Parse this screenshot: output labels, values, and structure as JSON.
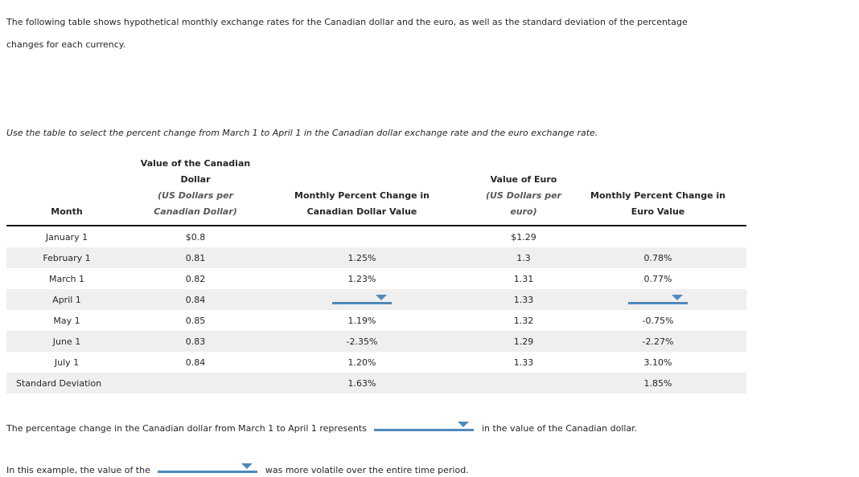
{
  "intro": "The following table shows hypothetical monthly exchange rates for the Canadian dollar and the euro, as well as the standard deviation of the percentage changes for each currency.",
  "instruction": "Use the table to select the percent change from March 1 to April 1 in the Canadian dollar exchange rate and the euro exchange rate.",
  "table": {
    "headers": {
      "month": "Month",
      "cad_value_title": "Value of the Canadian Dollar",
      "cad_value_sub": "(US Dollars per Canadian Dollar)",
      "cad_change": "Monthly Percent Change in Canadian Dollar Value",
      "euro_value_title": "Value of Euro",
      "euro_value_sub": "(US Dollars per euro)",
      "euro_change": "Monthly Percent Change in Euro Value"
    },
    "rows": [
      {
        "month": "January 1",
        "cad_value": "$0.8",
        "cad_change": "",
        "euro_value": "$1.29",
        "euro_change": ""
      },
      {
        "month": "February 1",
        "cad_value": "0.81",
        "cad_change": "1.25%",
        "euro_value": "1.3",
        "euro_change": "0.78%"
      },
      {
        "month": "March 1",
        "cad_value": "0.82",
        "cad_change": "1.23%",
        "euro_value": "1.31",
        "euro_change": "0.77%"
      },
      {
        "month": "April 1",
        "cad_value": "0.84",
        "cad_change": "",
        "euro_value": "1.33",
        "euro_change": ""
      },
      {
        "month": "May 1",
        "cad_value": "0.85",
        "cad_change": "1.19%",
        "euro_value": "1.32",
        "euro_change": "-0.75%"
      },
      {
        "month": "June 1",
        "cad_value": "0.83",
        "cad_change": "-2.35%",
        "euro_value": "1.29",
        "euro_change": "-2.27%"
      },
      {
        "month": "July 1",
        "cad_value": "0.84",
        "cad_change": "1.20%",
        "euro_value": "1.33",
        "euro_change": "3.10%"
      },
      {
        "month": "Standard Deviation",
        "cad_value": "",
        "cad_change": "1.63%",
        "euro_value": "",
        "euro_change": "1.85%"
      }
    ],
    "april_row_dropdowns": [
      "cad-percent-change-selector",
      "euro-percent-change-selector"
    ]
  },
  "question1": {
    "before": "The percentage change in the Canadian dollar from March 1 to April 1 represents",
    "after": "in the value of the Canadian dollar."
  },
  "question2": {
    "before": "In this example, the value of the",
    "after": "was more volatile over the entire time period."
  },
  "colors": {
    "accent_blue": "#4e89bb",
    "stripe_gray": "#efefef",
    "text": "#262626",
    "subheader_gray": "#595959"
  }
}
